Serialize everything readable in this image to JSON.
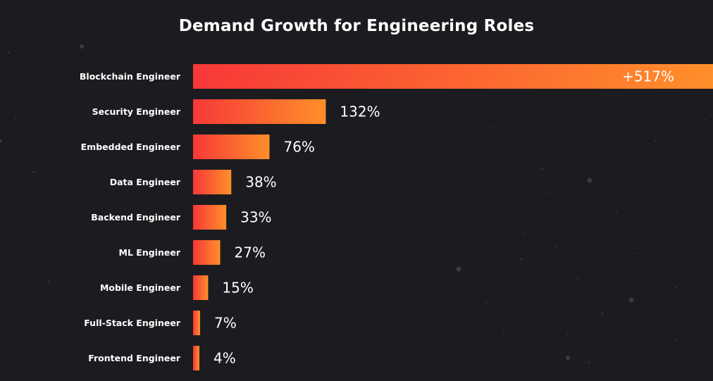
{
  "chart_data": {
    "type": "bar",
    "orientation": "horizontal",
    "title": "Demand Growth for Engineering Roles",
    "categories": [
      "Blockchain Engineer",
      "Security Engineer",
      "Embedded Engineer",
      "Data Engineer",
      "Backend Engineer",
      "ML Engineer",
      "Mobile Engineer",
      "Full-Stack Engineer",
      "Frontend Engineer"
    ],
    "values": [
      517,
      132,
      76,
      38,
      33,
      27,
      15,
      7,
      4
    ],
    "value_labels": [
      "+517%",
      "132%",
      "76%",
      "38%",
      "33%",
      "27%",
      "15%",
      "7%",
      "4%"
    ],
    "xlabel": "",
    "ylabel": "",
    "legend": "none",
    "grid": false,
    "colors": {
      "background": "#1c1c20",
      "bar_start": "#f73838",
      "bar_end": "#ff8f2a",
      "text": "#ffffff"
    }
  }
}
